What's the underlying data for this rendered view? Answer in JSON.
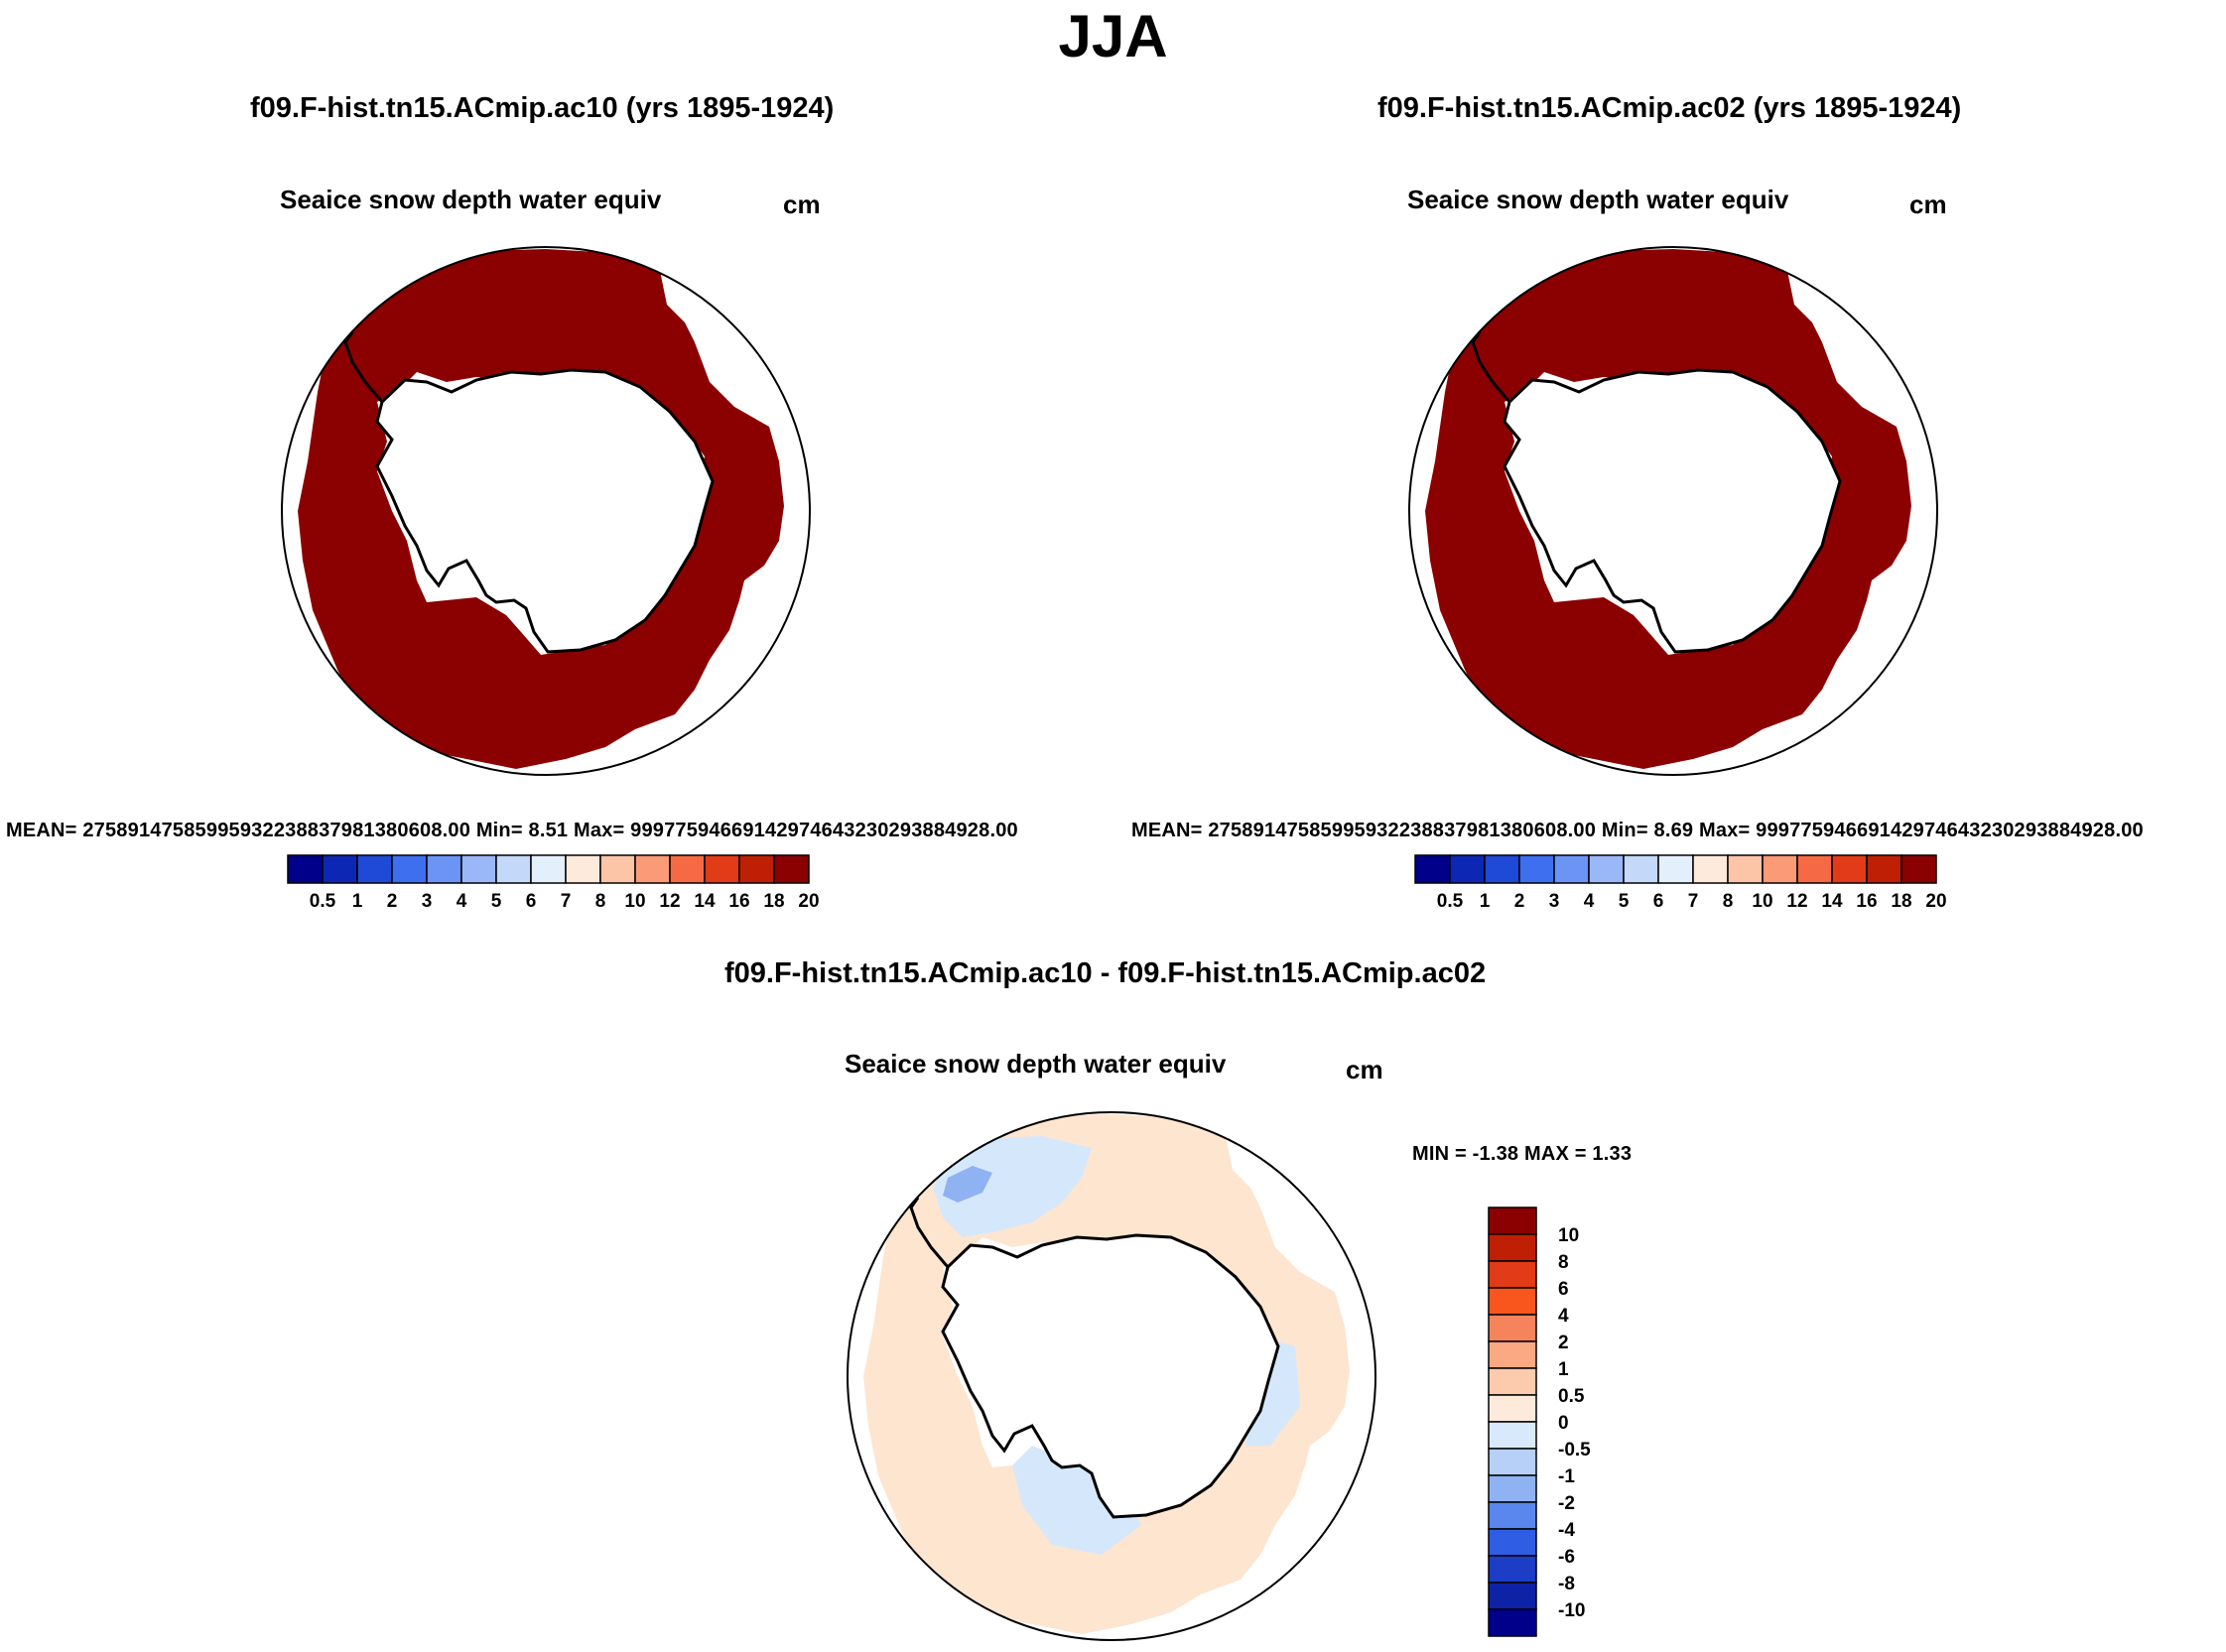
{
  "main_title": "JJA",
  "colors": {
    "ice_dark_red": "#8b0000",
    "diff_light_peach": "#fde5d0",
    "diff_light_blue": "#d5e8fb",
    "land_white": "#ffffff",
    "outline_black": "#000000"
  },
  "chart_data": [
    {
      "type": "heatmap",
      "projection": "south polar stereographic",
      "title": "f09.F-hist.tn15.ACmip.ac10 (yrs 1895-1924)",
      "variable": "Seaice snow depth water equiv",
      "units": "cm",
      "stats_text": "MEAN= 27589147585995932238837981380608.00  Min=   8.51  Max= 99977594669142974643230293884928.00",
      "mean": 2.758914758599593e+31,
      "min": 8.51,
      "max": 9.997759466914297e+31,
      "colorbar": {
        "orientation": "horizontal",
        "levels": [
          "0.5",
          "1",
          "2",
          "3",
          "4",
          "5",
          "6",
          "7",
          "8",
          "10",
          "12",
          "14",
          "16",
          "18",
          "20"
        ],
        "colors": [
          "#00008b",
          "#0d27b5",
          "#1f4ad8",
          "#3d6fef",
          "#6b94f5",
          "#9ab8f7",
          "#c4d8fa",
          "#e4effc",
          "#fdeadb",
          "#fcc5a8",
          "#fa9a76",
          "#f56a44",
          "#e23b17",
          "#bf1f05",
          "#8b0000"
        ]
      }
    },
    {
      "type": "heatmap",
      "projection": "south polar stereographic",
      "title": "f09.F-hist.tn15.ACmip.ac02 (yrs 1895-1924)",
      "variable": "Seaice snow depth water equiv",
      "units": "cm",
      "stats_text": "MEAN= 27589147585995932238837981380608.00  Min=   8.69  Max= 99977594669142974643230293884928.00",
      "mean": 2.758914758599593e+31,
      "min": 8.69,
      "max": 9.997759466914297e+31,
      "colorbar": {
        "orientation": "horizontal",
        "levels": [
          "0.5",
          "1",
          "2",
          "3",
          "4",
          "5",
          "6",
          "7",
          "8",
          "10",
          "12",
          "14",
          "16",
          "18",
          "20"
        ],
        "colors": [
          "#00008b",
          "#0d27b5",
          "#1f4ad8",
          "#3d6fef",
          "#6b94f5",
          "#9ab8f7",
          "#c4d8fa",
          "#e4effc",
          "#fdeadb",
          "#fcc5a8",
          "#fa9a76",
          "#f56a44",
          "#e23b17",
          "#bf1f05",
          "#8b0000"
        ]
      }
    },
    {
      "type": "heatmap",
      "projection": "south polar stereographic",
      "title": "f09.F-hist.tn15.ACmip.ac10 - f09.F-hist.tn15.ACmip.ac02",
      "variable": "Seaice snow depth water equiv",
      "units": "cm",
      "stats_text": "MIN =  -1.38 MAX =   1.33",
      "min": -1.38,
      "max": 1.33,
      "colorbar": {
        "orientation": "vertical",
        "levels": [
          "10",
          "8",
          "6",
          "4",
          "2",
          "1",
          "0.5",
          "0",
          "-0.5",
          "-1",
          "-2",
          "-4",
          "-6",
          "-8",
          "-10"
        ],
        "colors": [
          "#8b0000",
          "#bf1f05",
          "#e23b17",
          "#f9561d",
          "#f5835c",
          "#fba982",
          "#fccbae",
          "#fdeadb",
          "#d8e9fb",
          "#b6d0f8",
          "#8fb2f3",
          "#5a87ee",
          "#2f5ee4",
          "#1c3dc6",
          "#0d22a6",
          "#00008b"
        ]
      }
    }
  ]
}
